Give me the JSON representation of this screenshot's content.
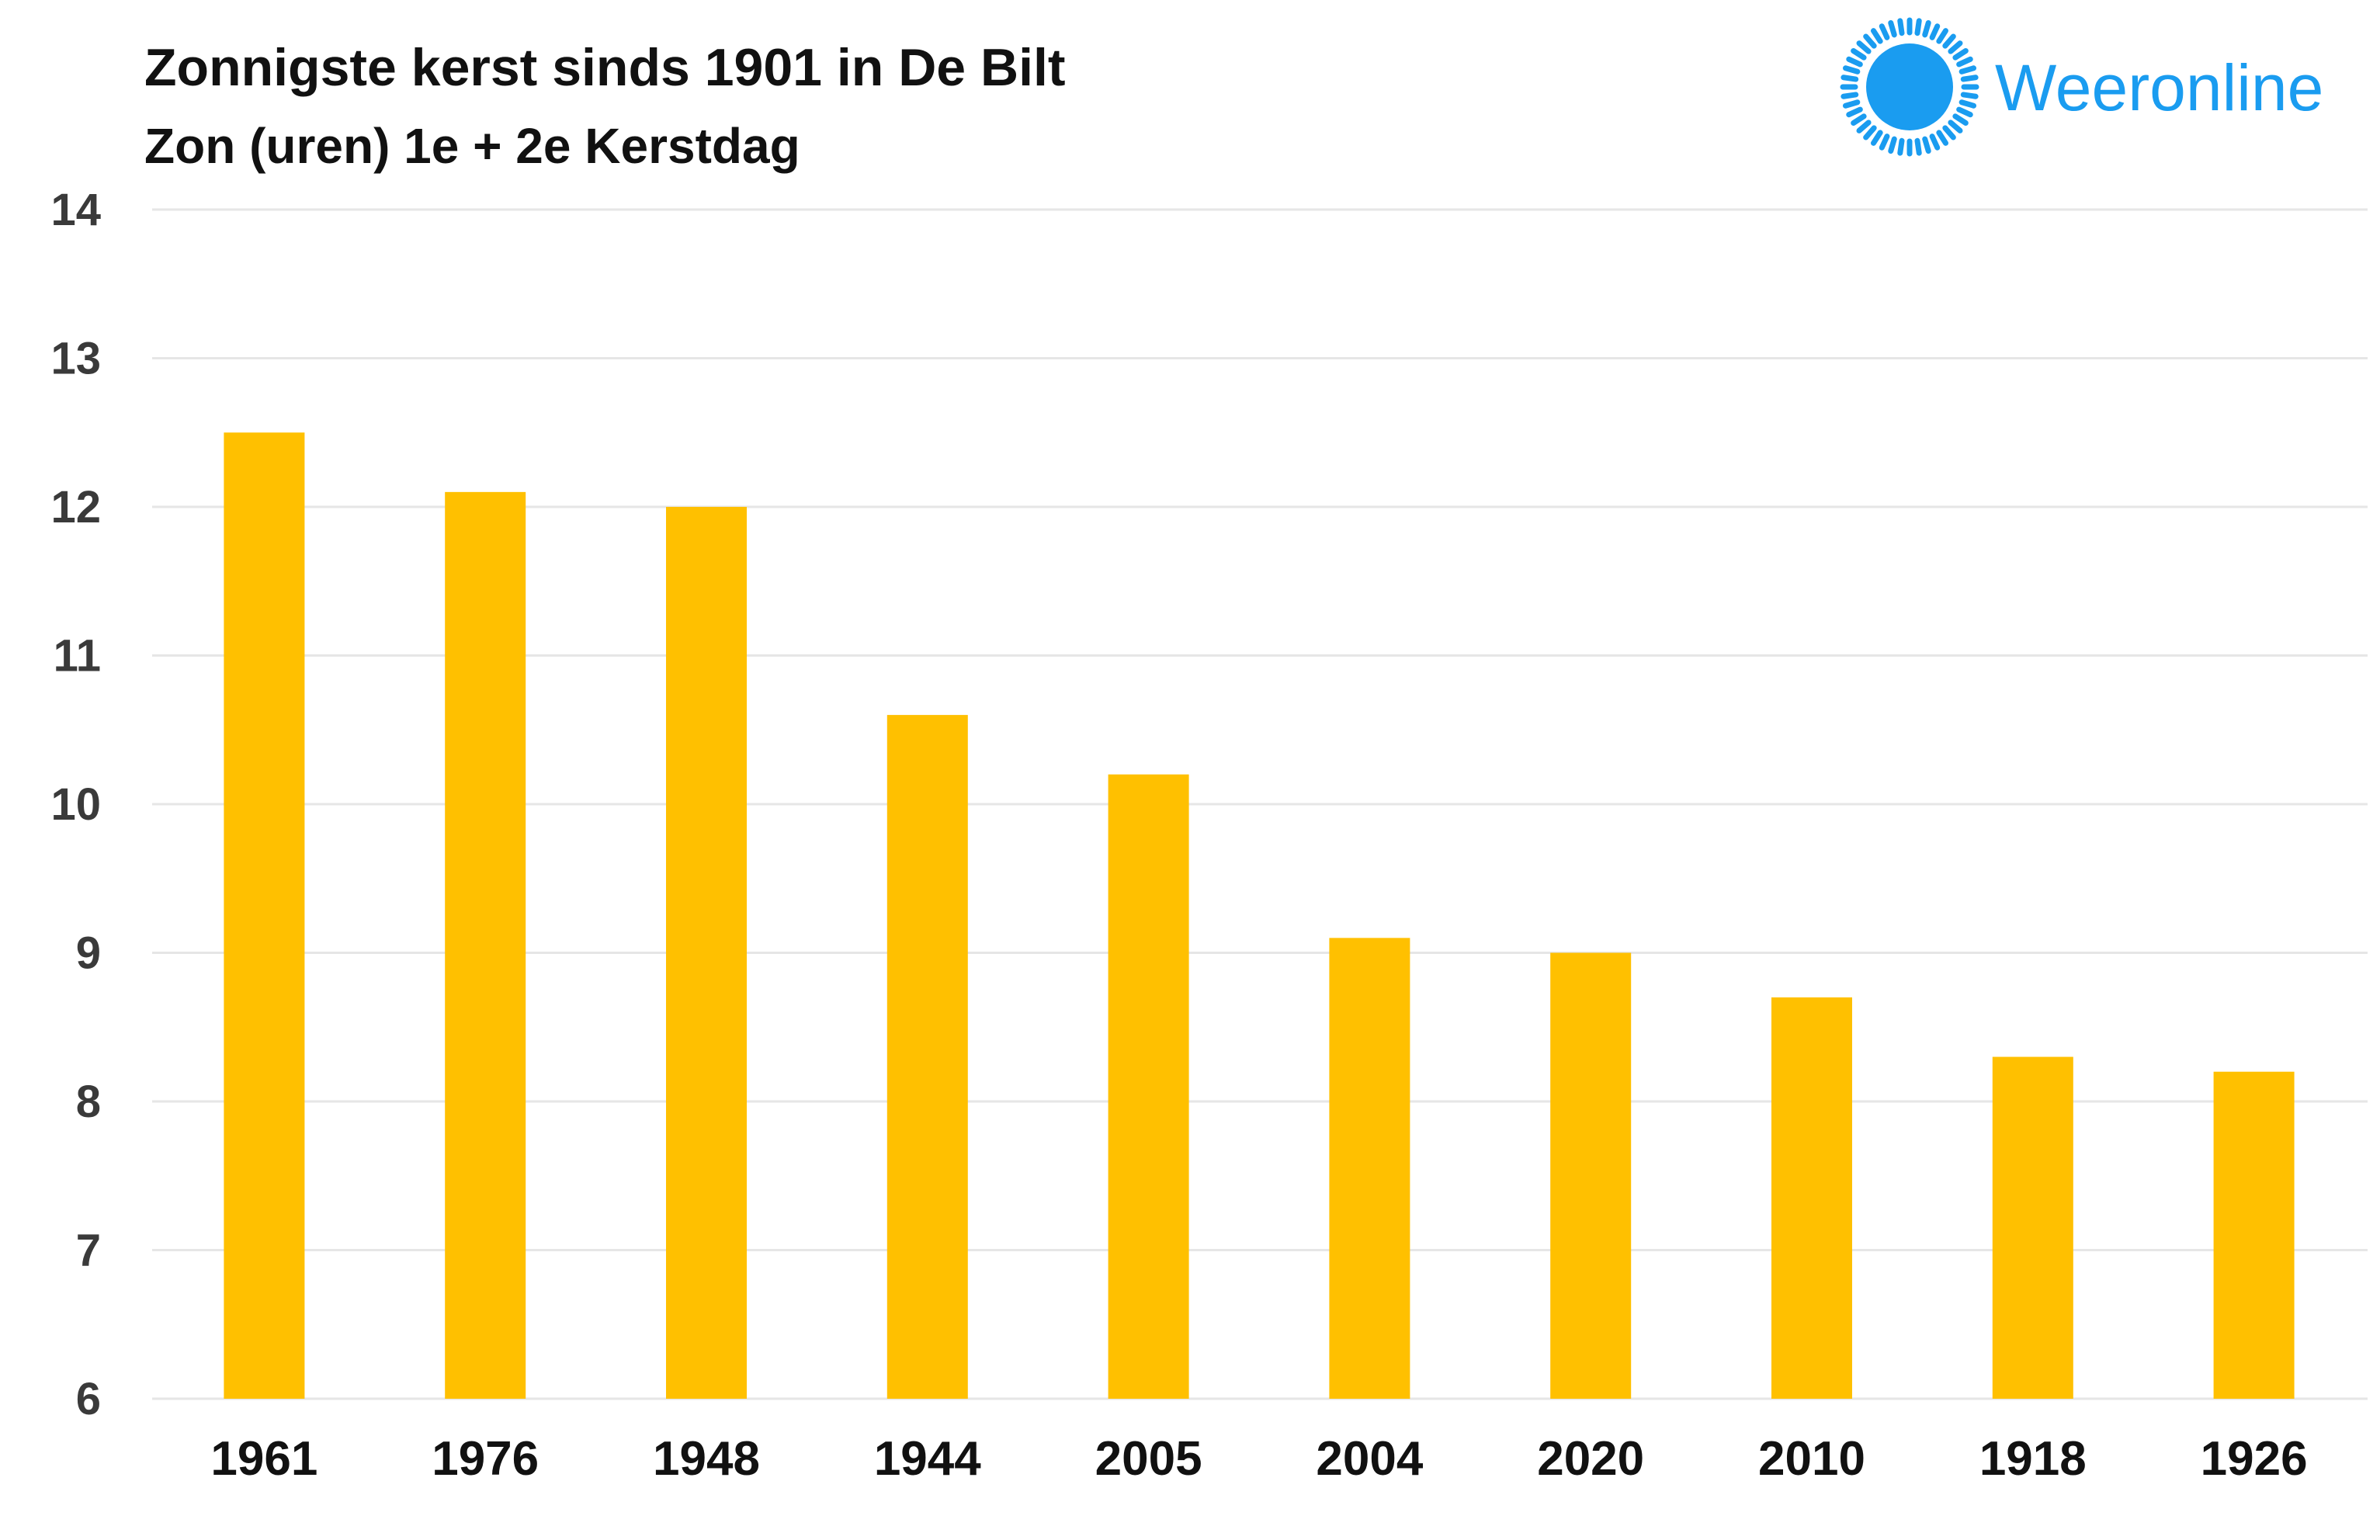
{
  "brand": {
    "name": "Weeronline",
    "color": "#1a9cf0",
    "icon": "sun-icon"
  },
  "colors": {
    "bar": "#ffc000",
    "grid": "#e6e6e6"
  },
  "chart_data": {
    "type": "bar",
    "title": "Zonnigste kerst sinds 1901 in De Bilt",
    "subtitle": "Zon (uren) 1e + 2e Kerstdag",
    "xlabel": "",
    "ylabel": "",
    "categories": [
      "1961",
      "1976",
      "1948",
      "1944",
      "2005",
      "2004",
      "2020",
      "2010",
      "1918",
      "1926"
    ],
    "values": [
      12.5,
      12.1,
      12.0,
      10.6,
      10.2,
      9.1,
      9.0,
      8.7,
      8.3,
      8.2
    ],
    "ylim": [
      6,
      14
    ],
    "yticks": [
      "6",
      "7",
      "8",
      "9",
      "10",
      "11",
      "12",
      "13",
      "14"
    ],
    "grid": true,
    "legend": "none"
  }
}
